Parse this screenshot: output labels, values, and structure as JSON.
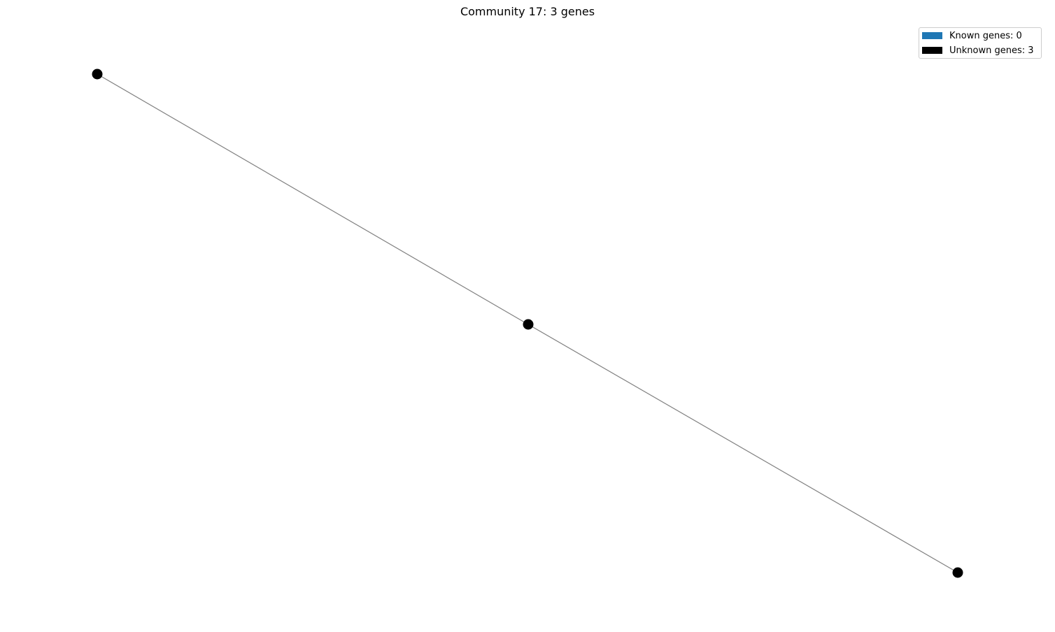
{
  "title": "Community 17: 3 genes",
  "legend": {
    "known": {
      "label": "Known genes: 0",
      "color": "#1f77b4"
    },
    "unknown": {
      "label": "Unknown genes: 3",
      "color": "#000000"
    }
  },
  "graph": {
    "node_color": "#000000",
    "edge_color": "#808080",
    "nodes": [
      {
        "id": "gene-1",
        "known": false
      },
      {
        "id": "gene-2",
        "known": false
      },
      {
        "id": "gene-3",
        "known": false
      }
    ],
    "edges": [
      {
        "source": "gene-1",
        "target": "gene-2"
      },
      {
        "source": "gene-2",
        "target": "gene-3"
      }
    ]
  }
}
